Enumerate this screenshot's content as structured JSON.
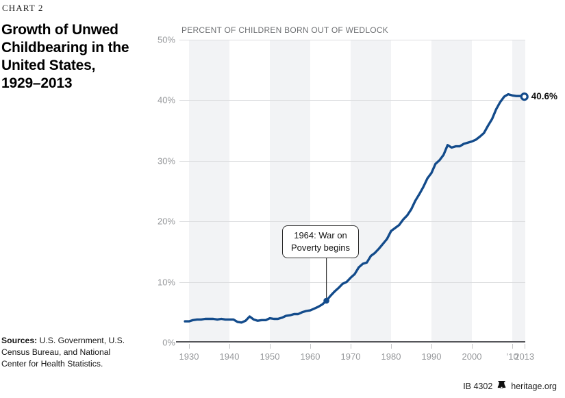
{
  "kicker": "CHART 2",
  "title": {
    "lines": [
      "Growth of Unwed",
      "Childbearing in the",
      "United States,",
      "1929–2013"
    ]
  },
  "chart_data": {
    "type": "line",
    "title": "Growth of Unwed Childbearing in the United States, 1929–2013",
    "subtitle": "PERCENT OF CHILDREN BORN OUT OF WEDLOCK",
    "xlabel": "",
    "ylabel": "Percent of children born out of wedlock",
    "xlim": [
      1928.14,
      2013.22
    ],
    "ylim": [
      0,
      50
    ],
    "grid": "horizontal",
    "legend": "none",
    "x": [
      1929,
      1930,
      1931,
      1932,
      1933,
      1934,
      1935,
      1936,
      1937,
      1938,
      1939,
      1940,
      1941,
      1942,
      1943,
      1944,
      1945,
      1946,
      1947,
      1948,
      1949,
      1950,
      1951,
      1952,
      1953,
      1954,
      1955,
      1956,
      1957,
      1958,
      1959,
      1960,
      1961,
      1962,
      1963,
      1964,
      1965,
      1966,
      1967,
      1968,
      1969,
      1970,
      1971,
      1972,
      1973,
      1974,
      1975,
      1976,
      1977,
      1978,
      1979,
      1980,
      1981,
      1982,
      1983,
      1984,
      1985,
      1986,
      1987,
      1988,
      1989,
      1990,
      1991,
      1992,
      1993,
      1994,
      1995,
      1996,
      1997,
      1998,
      1999,
      2000,
      2001,
      2002,
      2003,
      2004,
      2005,
      2006,
      2007,
      2008,
      2009,
      2010,
      2011,
      2012,
      2013
    ],
    "series": [
      {
        "name": "Percent of children born out of wedlock",
        "values": [
          3.5,
          3.5,
          3.7,
          3.8,
          3.8,
          3.9,
          3.9,
          3.9,
          3.8,
          3.9,
          3.8,
          3.8,
          3.8,
          3.4,
          3.3,
          3.6,
          4.3,
          3.8,
          3.6,
          3.7,
          3.7,
          4.0,
          3.9,
          3.9,
          4.1,
          4.4,
          4.5,
          4.7,
          4.7,
          5.0,
          5.2,
          5.3,
          5.6,
          5.9,
          6.3,
          6.9,
          7.7,
          8.4,
          9.0,
          9.7,
          10.0,
          10.7,
          11.3,
          12.4,
          13.0,
          13.2,
          14.3,
          14.8,
          15.5,
          16.3,
          17.1,
          18.4,
          18.9,
          19.4,
          20.3,
          21.0,
          22.0,
          23.4,
          24.5,
          25.7,
          27.1,
          28.0,
          29.5,
          30.1,
          31.0,
          32.6,
          32.2,
          32.4,
          32.4,
          32.8,
          33.0,
          33.2,
          33.5,
          34.0,
          34.6,
          35.8,
          36.9,
          38.5,
          39.7,
          40.6,
          41.0,
          40.8,
          40.7,
          40.7,
          40.6
        ]
      }
    ],
    "y_ticks": [
      {
        "value": 0,
        "label": "0%"
      },
      {
        "value": 10,
        "label": "10%"
      },
      {
        "value": 20,
        "label": "20%"
      },
      {
        "value": 30,
        "label": "30%"
      },
      {
        "value": 40,
        "label": "40%"
      },
      {
        "value": 50,
        "label": "50%"
      }
    ],
    "x_ticks": [
      {
        "year": 1930,
        "label": "1930"
      },
      {
        "year": 1940,
        "label": "1940"
      },
      {
        "year": 1950,
        "label": "1950"
      },
      {
        "year": 1960,
        "label": "1960"
      },
      {
        "year": 1970,
        "label": "1970"
      },
      {
        "year": 1980,
        "label": "1980"
      },
      {
        "year": 1990,
        "label": "1990"
      },
      {
        "year": 2000,
        "label": "2000"
      },
      {
        "year": 2010,
        "label": "’10"
      },
      {
        "year": 2013,
        "label": "2013"
      }
    ],
    "shaded_bands": [
      [
        1930,
        1940
      ],
      [
        1950,
        1960
      ],
      [
        1970,
        1980
      ],
      [
        1990,
        2000
      ],
      [
        2010,
        2013.22
      ]
    ],
    "annotation": {
      "year": 1964,
      "value": 6.9,
      "lines": [
        "1964: War on",
        "Poverty begins"
      ]
    },
    "end_label": "40.6%",
    "end_point": {
      "year": 2013,
      "value": 40.6
    },
    "colors": {
      "line": "#134b8b",
      "band": "#f2f3f5",
      "gridline": "#dcdddf",
      "axis": "#55565a",
      "tick": "#c4c5c7",
      "tick_label": "#96989b",
      "annotation_border": "#2b2b2b"
    }
  },
  "sources": {
    "label": "Sources:",
    "text": " U.S. Government, U.S. Census Bureau, and National Center for Health Statistics."
  },
  "footer": {
    "ib": "IB 4302",
    "site": "heritage.org",
    "logo": "liberty-bell-icon"
  }
}
